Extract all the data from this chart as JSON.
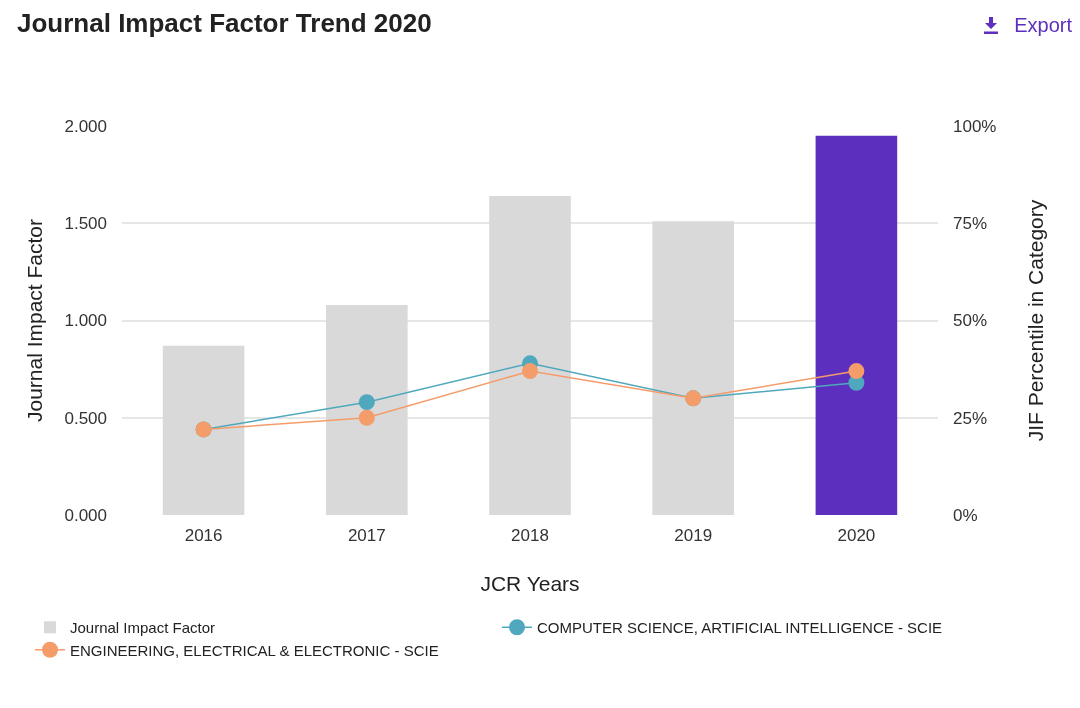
{
  "chart_data": {
    "type": "bar",
    "title": "Journal Impact Factor Trend 2020",
    "xlabel": "JCR Years",
    "ylabel": "Journal Impact Factor",
    "y2label": "JIF Percentile in Category",
    "annotations": [
      "Export"
    ],
    "categories": [
      "2016",
      "2017",
      "2018",
      "2019",
      "2020"
    ],
    "series": [
      {
        "name": "Journal Impact Factor",
        "colors": [
          "#d9d9d9",
          "#d9d9d9",
          "#d9d9d9",
          "#d9d9d9",
          "#5c2fbf"
        ],
        "values": [
          0.87,
          1.08,
          1.64,
          1.51,
          1.95
        ]
      },
      {
        "name": "COMPUTER SCIENCE, ARTIFICIAL INTELLIGENCE - SCIE",
        "type": "line",
        "axis": "y2",
        "color": "#4fa8bd",
        "values": [
          22,
          29,
          39,
          30,
          34
        ]
      },
      {
        "name": "ENGINEERING, ELECTRICAL & ELECTRONIC - SCIE",
        "type": "line",
        "axis": "y2",
        "color": "#f59c6b",
        "values": [
          22,
          25,
          37,
          30,
          37
        ]
      }
    ],
    "ylim": [
      0,
      2
    ],
    "yticks": [
      {
        "value": 0,
        "label": "0.000"
      },
      {
        "value": 0.5,
        "label": "0.500"
      },
      {
        "value": 1,
        "label": "1.000"
      },
      {
        "value": 1.5,
        "label": "1.500"
      },
      {
        "value": 2,
        "label": "2.000"
      }
    ],
    "y2lim": [
      0,
      100
    ],
    "y2ticks": [
      {
        "value": 0,
        "label": "0%"
      },
      {
        "value": 25,
        "label": "25%"
      },
      {
        "value": 50,
        "label": "50%"
      },
      {
        "value": 75,
        "label": "75%"
      },
      {
        "value": 100,
        "label": "100%"
      }
    ],
    "grid": "y",
    "legend": "bottom",
    "marker": "circle",
    "line_style": "solid"
  }
}
